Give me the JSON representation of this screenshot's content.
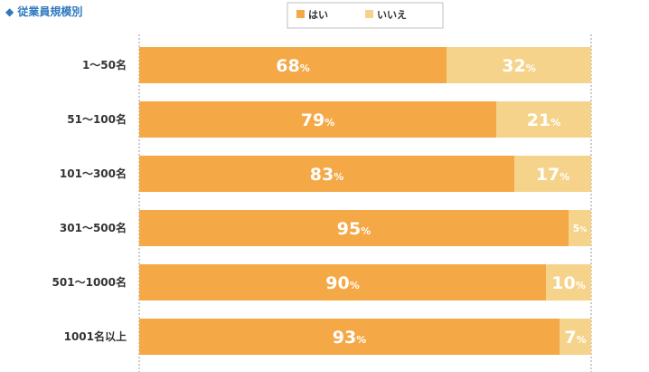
{
  "chart_data": {
    "type": "bar",
    "orientation": "horizontal",
    "stacked": true,
    "title": "◆ 従業員規模別",
    "categories": [
      "1〜50名",
      "51〜100名",
      "101〜300名",
      "301〜500名",
      "501〜1000名",
      "1001名以上"
    ],
    "series": [
      {
        "name": "はい",
        "values": [
          68,
          79,
          83,
          95,
          90,
          93
        ],
        "labels": [
          "68",
          "79",
          "83",
          "95",
          "90",
          "93"
        ],
        "color": "#f5a846"
      },
      {
        "name": "いいえ",
        "values": [
          32,
          21,
          17,
          5,
          10,
          7
        ],
        "labels": [
          "32",
          "21",
          "17",
          "5",
          "10",
          "7"
        ],
        "color": "#f5d38a"
      }
    ],
    "unit": "%",
    "xlim": [
      0,
      100
    ],
    "legend_position": "top-center"
  }
}
